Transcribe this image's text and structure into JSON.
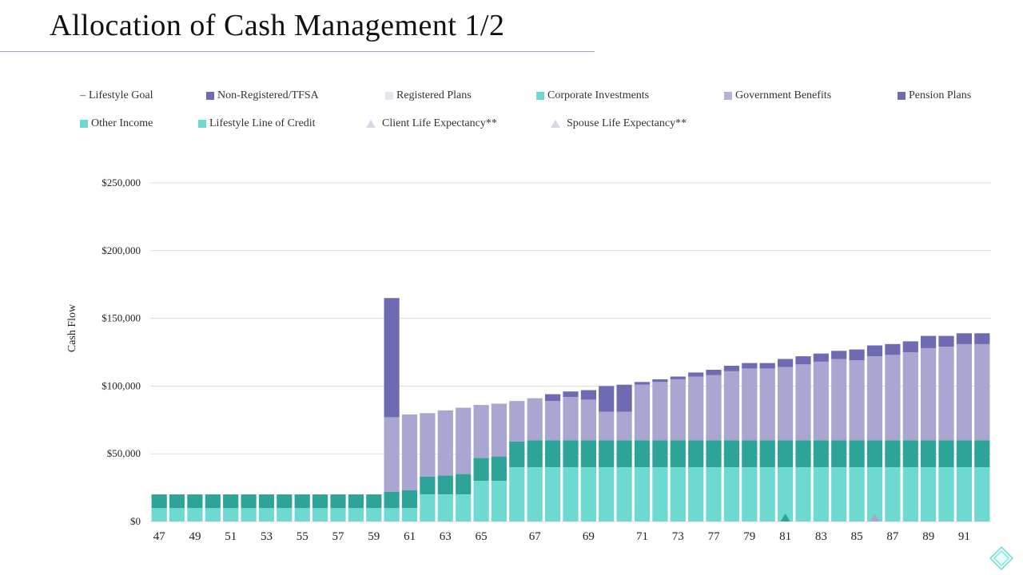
{
  "title": "Allocation of Cash Management 1/2",
  "colors": {
    "other_income": "#6dd9d0",
    "lifestyle_loc": "#2ea398",
    "government_benefits": "#a9a7d1",
    "pension_plans": "#6f6bb3",
    "gridline": "#dddddd",
    "marker": "#2ea398"
  },
  "legend": [
    {
      "label": "Lifestyle Goal",
      "kind": "line",
      "color": "#444444"
    },
    {
      "label": "Non-Registered/TFSA",
      "kind": "box",
      "color": "#6f6bb3"
    },
    {
      "label": "Registered Plans",
      "kind": "box",
      "color": "#e4e5ef"
    },
    {
      "label": "Corporate Investments",
      "kind": "box",
      "color": "#6dd9d0"
    },
    {
      "label": "Government Benefits",
      "kind": "box",
      "color": "#b3b2d6"
    },
    {
      "label": "Pension Plans",
      "kind": "box",
      "color": "#6f6bb3"
    },
    {
      "label": "Other Income",
      "kind": "box",
      "color": "#6dd9d0"
    },
    {
      "label": "Lifestyle Line of Credit",
      "kind": "box",
      "color": "#6dd9d0"
    },
    {
      "label": "Client Life Expectancy**",
      "kind": "triangle",
      "color": "#d6d8e6"
    },
    {
      "label": "Spouse Life Expectancy**",
      "kind": "triangle",
      "color": "#d6d8e6"
    }
  ],
  "chart_data": {
    "type": "bar",
    "stacked": true,
    "ylabel": "Cash Flow",
    "xlabel": "",
    "ylim": [
      0,
      250000
    ],
    "yticks": [
      {
        "value": 0,
        "label": "$0"
      },
      {
        "value": 50000,
        "label": "$50,000"
      },
      {
        "value": 100000,
        "label": "$100,000"
      },
      {
        "value": 150000,
        "label": "$150,000"
      },
      {
        "value": 200000,
        "label": "$200,000"
      },
      {
        "value": 250000,
        "label": "$250,000"
      }
    ],
    "grid": true,
    "xtick_labels": [
      {
        "index": 0,
        "label": "47"
      },
      {
        "index": 2,
        "label": "49"
      },
      {
        "index": 4,
        "label": "51"
      },
      {
        "index": 6,
        "label": "53"
      },
      {
        "index": 8,
        "label": "55"
      },
      {
        "index": 10,
        "label": "57"
      },
      {
        "index": 12,
        "label": "59"
      },
      {
        "index": 14,
        "label": "61"
      },
      {
        "index": 16,
        "label": "63"
      },
      {
        "index": 18,
        "label": "65"
      },
      {
        "index": 21,
        "label": "67"
      },
      {
        "index": 24,
        "label": "69"
      },
      {
        "index": 27,
        "label": "71"
      },
      {
        "index": 29,
        "label": "73"
      },
      {
        "index": 31,
        "label": "77"
      },
      {
        "index": 33,
        "label": "79"
      },
      {
        "index": 35,
        "label": "81"
      },
      {
        "index": 37,
        "label": "83"
      },
      {
        "index": 39,
        "label": "85"
      },
      {
        "index": 41,
        "label": "87"
      },
      {
        "index": 43,
        "label": "89"
      },
      {
        "index": 45,
        "label": "91"
      }
    ],
    "series": [
      {
        "name": "Other Income",
        "color_key": "other_income",
        "values": [
          10000,
          10000,
          10000,
          10000,
          10000,
          10000,
          10000,
          10000,
          10000,
          10000,
          10000,
          10000,
          10000,
          10000,
          10000,
          20000,
          20000,
          20000,
          30000,
          30000,
          40000,
          40000,
          40000,
          40000,
          40000,
          40000,
          40000,
          40000,
          40000,
          40000,
          40000,
          40000,
          40000,
          40000,
          40000,
          40000,
          40000,
          40000,
          40000,
          40000,
          40000,
          40000,
          40000,
          40000,
          40000,
          40000,
          40000
        ]
      },
      {
        "name": "Lifestyle Line of Credit",
        "color_key": "lifestyle_loc",
        "values": [
          10000,
          10000,
          10000,
          10000,
          10000,
          10000,
          10000,
          10000,
          10000,
          10000,
          10000,
          10000,
          10000,
          12000,
          13000,
          13000,
          14000,
          15000,
          17000,
          18000,
          19000,
          20000,
          20000,
          20000,
          20000,
          20000,
          20000,
          20000,
          20000,
          20000,
          20000,
          20000,
          20000,
          20000,
          20000,
          20000,
          20000,
          20000,
          20000,
          20000,
          20000,
          20000,
          20000,
          20000,
          20000,
          20000,
          20000
        ]
      },
      {
        "name": "Government Benefits",
        "color_key": "government_benefits",
        "values": [
          0,
          0,
          0,
          0,
          0,
          0,
          0,
          0,
          0,
          0,
          0,
          0,
          0,
          55000,
          56000,
          47000,
          48000,
          49000,
          39000,
          39000,
          30000,
          31000,
          29000,
          32000,
          30000,
          21000,
          21000,
          41000,
          43000,
          45000,
          47000,
          48000,
          51000,
          53000,
          53000,
          54000,
          56000,
          58000,
          60000,
          59000,
          62000,
          63000,
          65000,
          68000,
          69000,
          71000,
          71000
        ]
      },
      {
        "name": "Pension Plans",
        "color_key": "pension_plans",
        "values": [
          0,
          0,
          0,
          0,
          0,
          0,
          0,
          0,
          0,
          0,
          0,
          0,
          0,
          88000,
          0,
          0,
          0,
          0,
          0,
          0,
          0,
          0,
          5000,
          4000,
          7000,
          19000,
          20000,
          2000,
          2000,
          2000,
          3000,
          4000,
          4000,
          4000,
          4000,
          6000,
          6000,
          6000,
          6000,
          8000,
          8000,
          8000,
          8000,
          9000,
          8000,
          8000,
          8000
        ]
      }
    ],
    "markers": [
      {
        "name": "Client Life Expectancy**",
        "index": 35,
        "color_key": "marker"
      },
      {
        "name": "Spouse Life Expectancy**",
        "index": 40,
        "color_key": "government_benefits"
      }
    ]
  }
}
